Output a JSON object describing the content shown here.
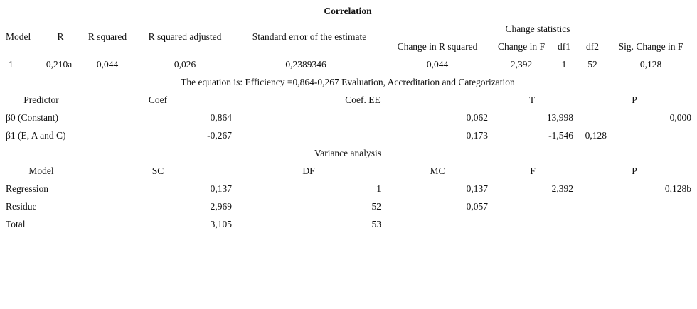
{
  "title": "Correlation",
  "model_summary": {
    "group_header": "Change statistics",
    "headers": [
      "Model",
      "R",
      "R squared",
      "R squared adjusted",
      "Standard error of the estimate",
      "Change in R squared",
      "Change in F",
      "df1",
      "df2",
      "Sig. Change in F"
    ],
    "rows": [
      [
        "1",
        "0,210a",
        "0,044",
        "0,026",
        "0,2389346",
        "0,044",
        "2,392",
        "1",
        "52",
        "0,128"
      ]
    ]
  },
  "equation": "The equation is: Efficiency =0,864-0,267 Evaluation, Accreditation and Categorization",
  "coefficients": {
    "headers": [
      "Predictor",
      "Coef",
      "Coef. EE",
      "T",
      "P"
    ],
    "rows": [
      [
        "β0 (Constant)",
        "0,864",
        "0,062",
        "13,998",
        "0,000"
      ],
      [
        "β1 (E, A and C)",
        "-0,267",
        "0,173",
        "-1,546",
        "0,128"
      ]
    ]
  },
  "variance_title": "Variance analysis",
  "anova": {
    "headers": [
      "Model",
      "SC",
      "DF",
      "MC",
      "F",
      "P"
    ],
    "rows": [
      [
        "Regression",
        "0,137",
        "1",
        "0,137",
        "2,392",
        "0,128b"
      ],
      [
        "Residue",
        "2,969",
        "52",
        "0,057"
      ],
      [
        "Total",
        "3,105",
        "53"
      ]
    ]
  }
}
